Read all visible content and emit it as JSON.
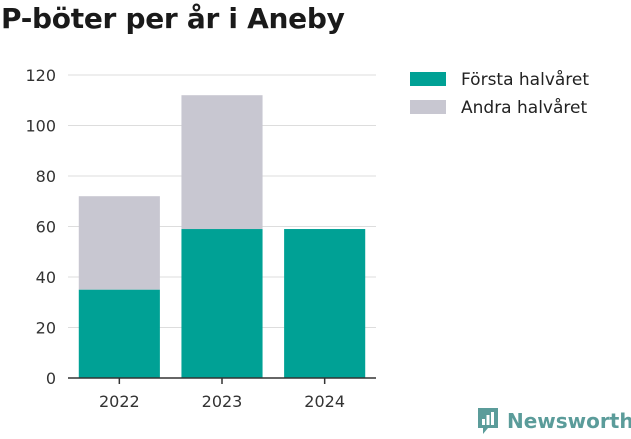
{
  "title": "P-böter per år i Aneby",
  "brand": {
    "name": "Newsworthy",
    "color": "#5b9c9a"
  },
  "chart_data": {
    "type": "bar",
    "stacked": true,
    "categories": [
      "2022",
      "2023",
      "2024"
    ],
    "series": [
      {
        "name": "Första halvåret",
        "color": "#00a195",
        "values": [
          35,
          59,
          59
        ]
      },
      {
        "name": "Andra halvåret",
        "color": "#c8c7d1",
        "values": [
          37,
          53,
          0
        ]
      }
    ],
    "ylim": [
      0,
      120
    ],
    "yticks": [
      0,
      20,
      40,
      60,
      80,
      100,
      120
    ],
    "grid": true,
    "legend": "right"
  }
}
